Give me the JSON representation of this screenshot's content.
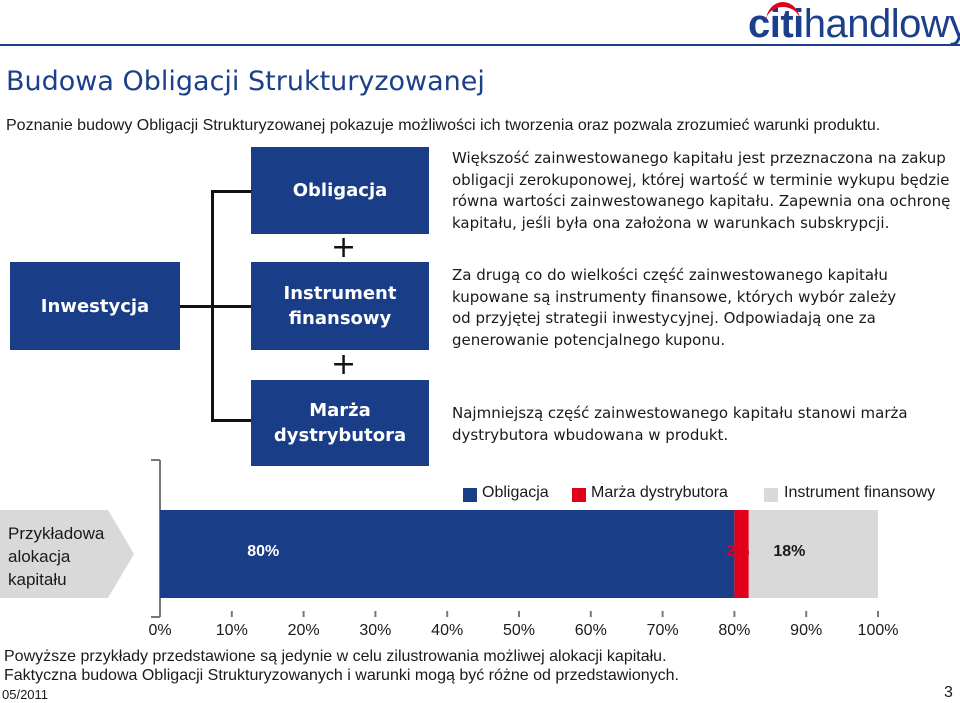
{
  "logo": {
    "citi": "citi",
    "handlowy": "handlowy"
  },
  "title": "Budowa Obligacji Strukturyzowanej",
  "intro": "Poznanie budowy Obligacji Strukturyzowanej pokazuje możliwości ich tworzenia oraz pozwala zrozumieć warunki produktu.",
  "diagram": {
    "root": "Inwestycja",
    "boxes": [
      {
        "label_1": "Obligacja",
        "label_2": ""
      },
      {
        "label_1": "Instrument",
        "label_2": "finansowy"
      },
      {
        "label_1": "Marża",
        "label_2": "dystrybutora"
      }
    ],
    "plus": "+",
    "descriptions": [
      [
        "Większość zainwestowanego kapitału jest przeznaczona na zakup",
        "obligacji zerokuponowej, której wartość w terminie wykupu będzie",
        "równa wartości zainwestowanego kapitału. Zapewnia ona ochronę",
        "kapitału, jeśli była ona założona w warunkach subskrypcji."
      ],
      [
        "Za drugą co do wielkości część zainwestowanego kapitału",
        "kupowane są instrumenty finansowe, których wybór zależy",
        "od przyjętej strategii inwestycyjnej. Odpowiadają one za",
        "generowanie potencjalnego kuponu."
      ],
      [
        "Najmniejszą część zainwestowanego kapitału stanowi marża",
        "dystrybutora wbudowana w produkt."
      ]
    ]
  },
  "chart_data": {
    "type": "bar",
    "orientation": "horizontal",
    "stacked": true,
    "categories": [
      "Przykładowa alokacja kapitału"
    ],
    "category_label_lines": [
      "Przykładowa",
      "alokacja",
      "kapitału"
    ],
    "series": [
      {
        "name": "Obligacja",
        "values": [
          80
        ],
        "label": "80%",
        "color": "#1a3d88"
      },
      {
        "name": "Marża dystrybutora",
        "values": [
          2
        ],
        "label": "2%",
        "color": "#e0001b"
      },
      {
        "name": "Instrument finansowy",
        "values": [
          18
        ],
        "label": "18%",
        "color": "#d9d9d9"
      }
    ],
    "legend_order": [
      "Obligacja",
      "Marża dystrybutora",
      "Instrument finansowy"
    ],
    "xlim": [
      0,
      100
    ],
    "xticks": [
      "0%",
      "10%",
      "20%",
      "30%",
      "40%",
      "50%",
      "60%",
      "70%",
      "80%",
      "90%",
      "100%"
    ],
    "legend_position": "top-right"
  },
  "footer": {
    "note_1": "Powyższe przykłady przedstawione są jedynie w celu zilustrowania możliwej alokacji kapitału.",
    "note_2": "Faktyczna budowa Obligacji Strukturyzowanych i warunki mogą być różne od przedstawionych.",
    "date": "05/2011",
    "page": "3"
  },
  "colors": {
    "brand_blue": "#1a3d88",
    "brand_red": "#e0001b",
    "grey": "#d9d9d9"
  }
}
